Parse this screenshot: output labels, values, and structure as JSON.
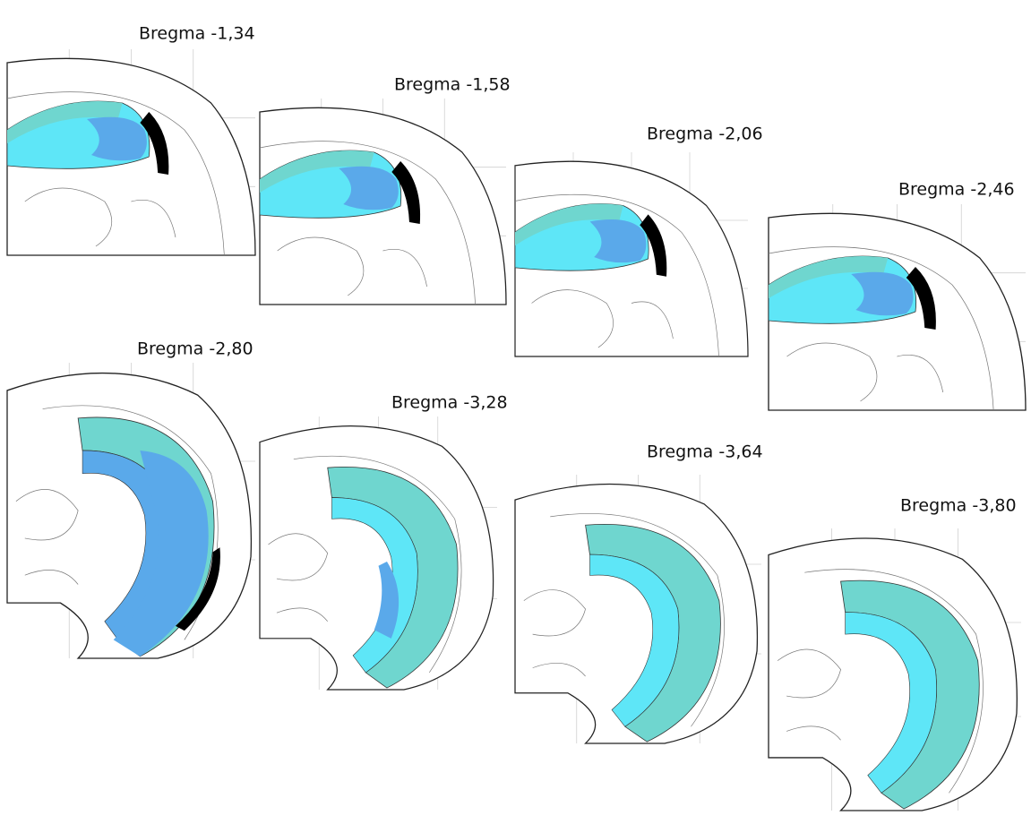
{
  "sections": [
    {
      "label": "Bregma -1,34"
    },
    {
      "label": "Bregma -1,58"
    },
    {
      "label": "Bregma -2,06"
    },
    {
      "label": "Bregma -2,46"
    },
    {
      "label": "Bregma -2,80"
    },
    {
      "label": "Bregma -3,28"
    },
    {
      "label": "Bregma -3,64"
    },
    {
      "label": "Bregma -3,80"
    }
  ]
}
